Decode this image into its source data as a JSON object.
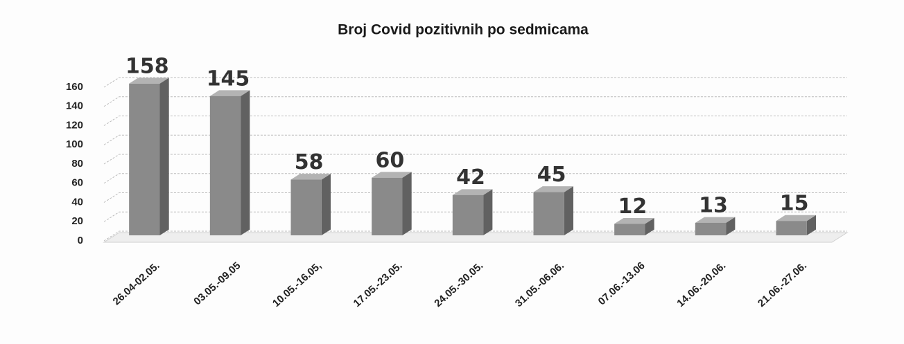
{
  "chart_data": {
    "type": "bar",
    "title": "Broj Covid pozitivnih po sedmicama",
    "categories": [
      "26.04-02.05.",
      "03.05.-09.05",
      "10.05.-16.05,",
      "17.05.-23.05.",
      "24.05.-30.05.",
      "31.05.-06.06.",
      "07.06.-13.06",
      "14.06.-20.06.",
      "21.06.-27.06."
    ],
    "values": [
      158,
      145,
      58,
      60,
      42,
      45,
      12,
      13,
      15
    ],
    "color": "#8a8a8a",
    "ylim": [
      0,
      160
    ],
    "yticks": [
      0,
      20,
      40,
      60,
      80,
      100,
      120,
      140,
      160
    ],
    "grid": true
  }
}
